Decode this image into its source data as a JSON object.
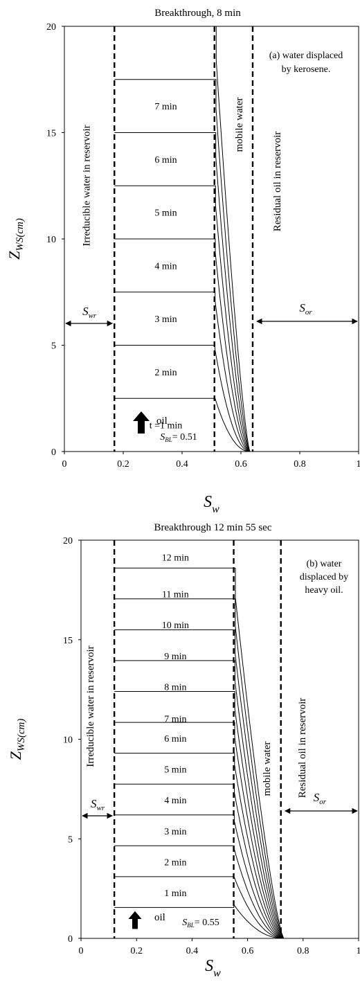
{
  "chart_data": [
    {
      "type": "line",
      "title": "Breakthrough,  8 min",
      "xlabel": "S",
      "xlabel_sub": "w",
      "ylabel": "Z",
      "ylabel_sub": "WS(cm)",
      "xlim": [
        0,
        1
      ],
      "ylim": [
        0,
        20
      ],
      "xticks": [
        0,
        0.2,
        0.4,
        0.6,
        0.8,
        1
      ],
      "xtick_labels": [
        "0",
        "0.2",
        "0.4",
        "0.6",
        "0.8",
        "1"
      ],
      "yticks": [
        0,
        5,
        10,
        15,
        20
      ],
      "ytick_labels": [
        "0",
        "5",
        "10",
        "15",
        "20"
      ],
      "grid": false,
      "annotation_lines": [
        "(a) water displaced",
        "by kerosene."
      ],
      "swr": 0.17,
      "sbl": 0.51,
      "smax": 0.63,
      "sor_line": 0.64,
      "swr_label": "S",
      "swr_label_sub": "wr",
      "sor_label": "S",
      "sor_label_sub": "or",
      "sbl_label": "S",
      "sbl_label_sub": "BL",
      "sbl_value_text": "= 0.51",
      "region_irreducible": "Irreducible  water in reservoir",
      "region_mobile": "mobile  water",
      "region_residual": "Residual oil in reservoir",
      "oil_label": "oil",
      "front_heights": [
        2.5,
        5,
        7.5,
        10,
        12.5,
        15,
        17.5,
        20
      ],
      "front_labels": [
        {
          "text": "t =1 min",
          "y": 1.25
        },
        {
          "text": "2 min",
          "y": 3.75
        },
        {
          "text": "3 min",
          "y": 6.25
        },
        {
          "text": "4 min",
          "y": 8.75
        },
        {
          "text": "5 min",
          "y": 11.25
        },
        {
          "text": "6 min",
          "y": 13.75
        },
        {
          "text": "7 min",
          "y": 16.25
        }
      ]
    },
    {
      "type": "line",
      "title": "Breakthrough  12  min  55  sec",
      "xlabel": "S",
      "xlabel_sub": "w",
      "ylabel": "Z",
      "ylabel_sub": "WS(cm)",
      "xlim": [
        0,
        1
      ],
      "ylim": [
        0,
        20
      ],
      "xticks": [
        0,
        0.2,
        0.4,
        0.6,
        0.8,
        1
      ],
      "xtick_labels": [
        "0",
        "0.2",
        "0.4",
        "0.6",
        "0.8",
        "1"
      ],
      "yticks": [
        0,
        5,
        10,
        15,
        20
      ],
      "ytick_labels": [
        "0",
        "5",
        "10",
        "15",
        "20"
      ],
      "grid": false,
      "annotation_lines": [
        "(b)  water",
        "displaced  by",
        "heavy oil."
      ],
      "swr": 0.12,
      "sbl": 0.55,
      "smax": 0.73,
      "sor_line": 0.72,
      "swr_label": "S",
      "swr_label_sub": "wr",
      "sor_label": "S",
      "sor_label_sub": "or",
      "sbl_label": "S",
      "sbl_label_sub": "BL",
      "sbl_value_text": "= 0.55",
      "region_irreducible": "Irreducible  water in reservoir",
      "region_mobile": "mobile  water",
      "region_residual": "Residual oil in reservoir",
      "oil_label": "oil",
      "front_heights": [
        1.55,
        3.1,
        4.65,
        6.2,
        7.75,
        9.3,
        10.85,
        12.4,
        13.95,
        15.5,
        17.05,
        18.6
      ],
      "front_labels": [
        {
          "text": "1 min",
          "y": 2.3
        },
        {
          "text": "2 min",
          "y": 3.85
        },
        {
          "text": "3 min",
          "y": 5.4
        },
        {
          "text": "4 min",
          "y": 6.95
        },
        {
          "text": "5 min",
          "y": 8.5
        },
        {
          "text": "6 min",
          "y": 10.05
        },
        {
          "text": "7 min",
          "y": 11.05
        },
        {
          "text": "8 min",
          "y": 12.65
        },
        {
          "text": "9 min",
          "y": 14.2
        },
        {
          "text": "10 min",
          "y": 15.75
        },
        {
          "text": "11 min",
          "y": 17.3
        },
        {
          "text": "12 min",
          "y": 19.15
        }
      ]
    }
  ]
}
